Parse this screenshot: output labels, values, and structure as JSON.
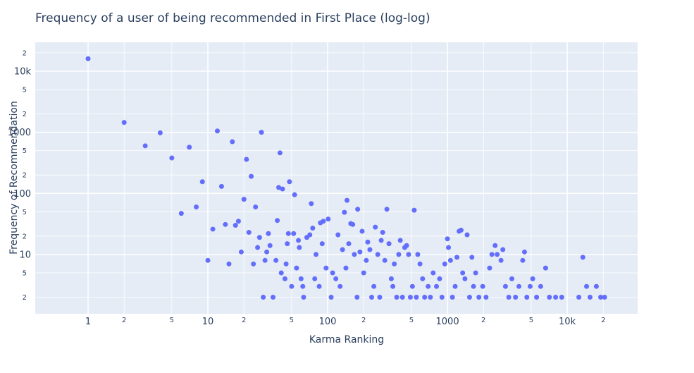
{
  "chart_data": {
    "type": "scatter",
    "title": "Frequency of a user of being recommended in First Place (log-log)",
    "xlabel": "Karma Ranking",
    "ylabel": "Frequency of Recommendation",
    "log_x": true,
    "log_y": true,
    "grid": true,
    "color": "#636efa",
    "xlim": [
      0.362,
      38700
    ],
    "ylim": [
      1.07,
      29700
    ],
    "xticks": [
      1,
      2,
      5,
      10,
      {
        "value": 20,
        "label": "2"
      },
      {
        "value": 50,
        "label": "5"
      },
      100,
      {
        "value": 200,
        "label": "2"
      },
      {
        "value": 500,
        "label": "5"
      },
      1000,
      {
        "value": 2000,
        "label": "2"
      },
      {
        "value": 5000,
        "label": "5"
      },
      {
        "value": 10000,
        "label": "10k"
      },
      {
        "value": 20000,
        "label": "2"
      }
    ],
    "yticks": [
      2,
      5,
      10,
      {
        "value": 20,
        "label": "2"
      },
      {
        "value": 50,
        "label": "5"
      },
      100,
      {
        "value": 200,
        "label": "2"
      },
      {
        "value": 500,
        "label": "5"
      },
      1000,
      {
        "value": 2000,
        "label": "2"
      },
      {
        "value": 5000,
        "label": "5"
      },
      {
        "value": 10000,
        "label": "10k"
      },
      {
        "value": 20000,
        "label": "2"
      }
    ],
    "x": [
      1,
      2,
      3,
      4,
      5,
      6,
      7,
      8,
      9,
      10,
      11,
      12,
      13,
      14,
      15,
      16,
      17,
      18,
      19,
      20,
      21,
      22,
      23,
      24,
      25,
      26,
      27,
      28,
      29,
      30,
      31,
      32,
      33,
      35,
      37,
      38,
      39,
      40,
      41,
      42,
      44,
      45,
      46,
      47,
      48,
      50,
      52,
      53,
      55,
      57,
      58,
      60,
      62,
      63,
      67,
      71,
      73,
      75,
      78,
      80,
      85,
      87,
      90,
      92,
      97,
      101,
      107,
      110,
      117,
      122,
      127,
      133,
      138,
      142,
      145,
      150,
      156,
      162,
      167,
      176,
      178,
      186,
      194,
      200,
      210,
      216,
      225,
      233,
      243,
      250,
      262,
      272,
      280,
      288,
      300,
      312,
      325,
      340,
      350,
      360,
      377,
      392,
      404,
      421,
      440,
      456,
      474,
      490,
      510,
      528,
      550,
      565,
      590,
      620,
      645,
      690,
      720,
      760,
      810,
      860,
      900,
      950,
      1000,
      1020,
      1060,
      1100,
      1160,
      1200,
      1250,
      1300,
      1340,
      1400,
      1460,
      1530,
      1600,
      1650,
      1720,
      1830,
      1970,
      2100,
      2250,
      2350,
      2500,
      2600,
      2800,
      2900,
      3050,
      3250,
      3450,
      3700,
      3950,
      4250,
      4400,
      4600,
      4900,
      5150,
      5550,
      6000,
      6600,
      7100,
      8000,
      9000,
      12500,
      13500,
      14500,
      15500,
      17500,
      19000,
      20500
    ],
    "y": [
      16000,
      1450,
      600,
      980,
      380,
      47,
      570,
      60,
      155,
      8,
      26,
      1050,
      130,
      31,
      7,
      700,
      30,
      35,
      11,
      80,
      360,
      23,
      190,
      7,
      60,
      13,
      19,
      1000,
      2,
      8,
      11,
      22,
      14,
      2,
      8,
      36,
      125,
      460,
      5,
      118,
      4,
      7,
      15,
      22,
      155,
      3,
      22,
      95,
      6,
      17,
      13,
      4,
      3,
      2,
      19,
      21,
      68,
      27,
      4,
      10,
      3,
      33,
      15,
      35,
      6,
      38,
      2,
      5,
      4,
      21,
      3,
      12,
      49,
      6,
      77,
      15,
      32,
      31,
      10,
      2,
      55,
      11,
      24,
      5,
      8,
      16,
      12,
      2,
      3,
      28,
      10,
      2,
      17,
      23,
      8,
      55,
      15,
      4,
      3,
      7,
      2,
      10,
      17,
      2,
      13,
      14,
      10,
      2,
      3,
      53,
      2,
      10,
      7,
      4,
      2,
      3,
      2,
      5,
      3,
      4,
      2,
      7,
      18,
      13,
      8,
      2,
      3,
      9,
      24,
      25,
      5,
      4,
      21,
      2,
      9,
      3,
      5,
      2,
      3,
      2,
      6,
      10,
      14,
      10,
      8,
      12,
      3,
      2,
      4,
      2,
      3,
      8,
      11,
      2,
      3,
      4,
      2,
      3,
      6,
      2,
      2,
      2,
      2,
      9,
      3,
      2,
      3,
      2,
      2
    ]
  }
}
